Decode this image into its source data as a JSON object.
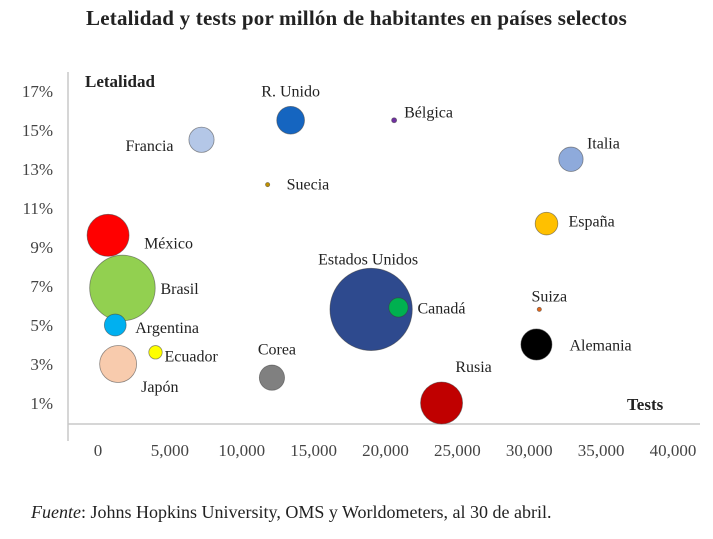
{
  "chart_data": {
    "type": "scatter",
    "title": "Letalidad y tests por millón de habitantes en países selectos",
    "xlabel": "Tests",
    "ylabel": "Letalidad",
    "x_ticks": [
      "0",
      "5,000",
      "10,000",
      "15,000",
      "20,000",
      "25,000",
      "30,000",
      "35,000",
      "40,000"
    ],
    "x_tick_values": [
      0,
      5000,
      10000,
      15000,
      20000,
      25000,
      30000,
      35000,
      40000
    ],
    "y_ticks": [
      "1%",
      "3%",
      "5%",
      "7%",
      "9%",
      "11%",
      "13%",
      "15%",
      "17%"
    ],
    "y_tick_values": [
      1,
      3,
      5,
      7,
      9,
      11,
      13,
      15,
      17
    ],
    "xlim": [
      -2000,
      40000
    ],
    "ylim": [
      0,
      18
    ],
    "grid": false,
    "legend": "none",
    "points": [
      {
        "label": "R. Unido",
        "x": 13400,
        "y": 15.5,
        "size": 3.3,
        "color": "#1565c0"
      },
      {
        "label": "Bélgica",
        "x": 20600,
        "y": 15.5,
        "size": 0.6,
        "color": "#7030a0"
      },
      {
        "label": "Francia",
        "x": 7200,
        "y": 14.5,
        "size": 3.0,
        "color": "#b4c7e7"
      },
      {
        "label": "Italia",
        "x": 32900,
        "y": 13.5,
        "size": 2.9,
        "color": "#8eaadb"
      },
      {
        "label": "Suecia",
        "x": 11800,
        "y": 12.2,
        "size": 0.5,
        "color": "#bf9000"
      },
      {
        "label": "España",
        "x": 31200,
        "y": 10.2,
        "size": 2.7,
        "color": "#ffc000"
      },
      {
        "label": "México",
        "x": 700,
        "y": 9.6,
        "size": 5.0,
        "color": "#ff0000"
      },
      {
        "label": "Brasil",
        "x": 1700,
        "y": 6.9,
        "size": 7.8,
        "color": "#92d050"
      },
      {
        "label": "Estados Unidos",
        "x": 19000,
        "y": 5.8,
        "size": 9.8,
        "color": "#2e4a8e"
      },
      {
        "label": "Canadá",
        "x": 20900,
        "y": 5.9,
        "size": 2.3,
        "color": "#00b050"
      },
      {
        "label": "Suiza",
        "x": 30700,
        "y": 5.8,
        "size": 0.5,
        "color": "#e0661a"
      },
      {
        "label": "Argentina",
        "x": 1200,
        "y": 5.0,
        "size": 2.6,
        "color": "#00b0f0"
      },
      {
        "label": "Alemania",
        "x": 30500,
        "y": 4.0,
        "size": 3.7,
        "color": "#000000"
      },
      {
        "label": "Ecuador",
        "x": 4000,
        "y": 3.6,
        "size": 1.6,
        "color": "#ffff00"
      },
      {
        "label": "Japón",
        "x": 1400,
        "y": 3.0,
        "size": 4.4,
        "color": "#f8cbad"
      },
      {
        "label": "Corea",
        "x": 12100,
        "y": 2.3,
        "size": 3.0,
        "color": "#808080"
      },
      {
        "label": "Rusia",
        "x": 23900,
        "y": 1.0,
        "size": 5.0,
        "color": "#c00000"
      }
    ]
  },
  "source": {
    "label": "Fuente",
    "text": ": Johns Hopkins University, OMS y Worldometers, al 30 de abril."
  }
}
